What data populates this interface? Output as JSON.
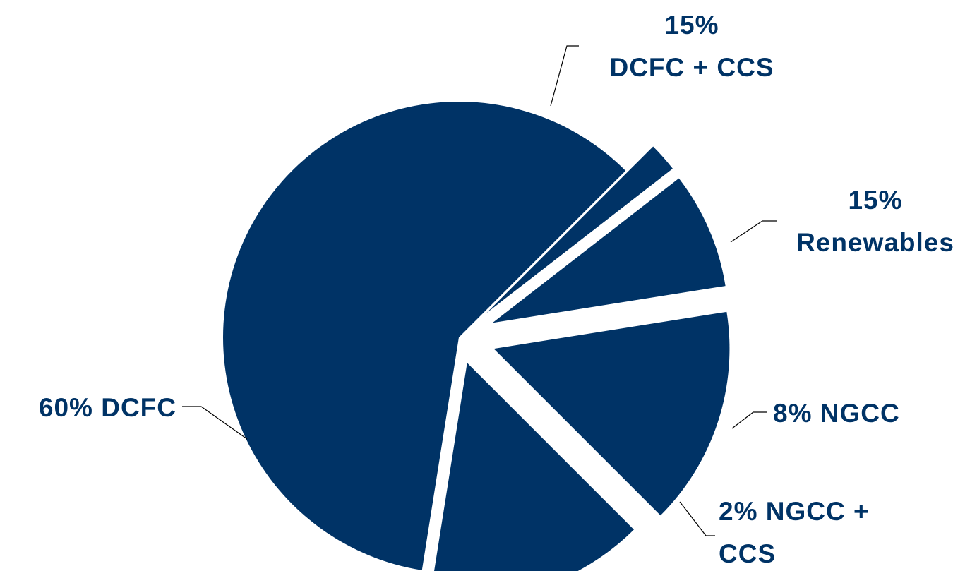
{
  "chart_data": {
    "type": "pie",
    "title": "",
    "slice_color": "#003366",
    "start_angle_deg": 45,
    "direction": "counterclockwise",
    "slices": [
      {
        "name": "DCFC",
        "value": 60,
        "lines": [
          "60% DCFC"
        ]
      },
      {
        "name": "DCFC + CCS",
        "value": 15,
        "lines": [
          "15%",
          "DCFC + CCS"
        ]
      },
      {
        "name": "Renewables",
        "value": 15,
        "lines": [
          "15%",
          "Renewables"
        ]
      },
      {
        "name": "NGCC",
        "value": 8,
        "lines": [
          "8% NGCC"
        ]
      },
      {
        "name": "NGCC + CCS",
        "value": 2,
        "lines": [
          "2% NGCC +",
          "CCS"
        ]
      }
    ]
  }
}
